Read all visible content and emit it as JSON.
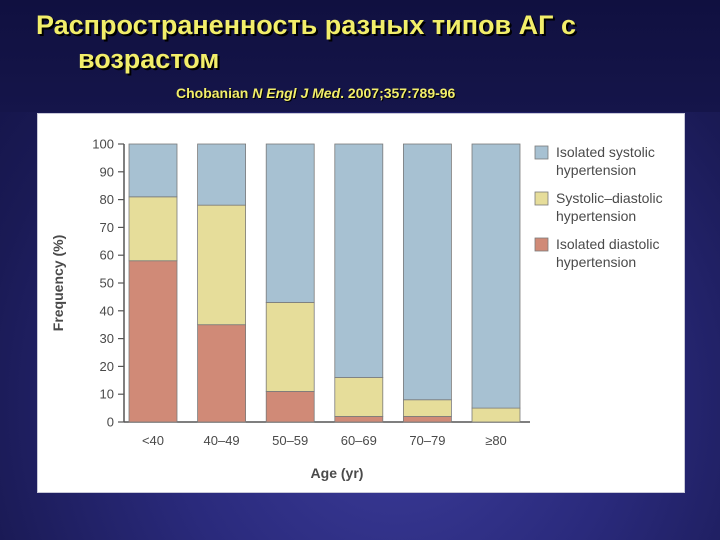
{
  "slide": {
    "title_line1": "Распространенность разных типов АГ с",
    "title_line2": "возрастом",
    "citation_author": "Chobanian",
    "citation_journal": "N Engl J Med",
    "citation_ref": ". 2007;357:789-96"
  },
  "chart_data": {
    "type": "bar",
    "stacked": true,
    "title": "",
    "xlabel": "Age (yr)",
    "ylabel": "Frequency (%)",
    "ylim": [
      0,
      100
    ],
    "yticks": [
      0,
      10,
      20,
      30,
      40,
      50,
      60,
      70,
      80,
      90,
      100
    ],
    "categories": [
      "<40",
      "40–49",
      "50–59",
      "60–69",
      "70–79",
      "≥80"
    ],
    "series": [
      {
        "name": "Isolated diastolic hypertension",
        "values": [
          58,
          35,
          11,
          2,
          2,
          0
        ],
        "color": "#d08a77"
      },
      {
        "name": "Systolic–diastolic hypertension",
        "values": [
          23,
          43,
          32,
          14,
          6,
          5
        ],
        "color": "#e6dd9a"
      },
      {
        "name": "Isolated systolic hypertension",
        "values": [
          19,
          22,
          57,
          84,
          92,
          95
        ],
        "color": "#a7c1d2"
      }
    ],
    "legend": {
      "placement": "right",
      "items": [
        {
          "line1": "Isolated systolic",
          "line2": "hypertension",
          "color": "#a7c1d2"
        },
        {
          "line1": "Systolic–diastolic",
          "line2": "hypertension",
          "color": "#e6dd9a"
        },
        {
          "line1": "Isolated diastolic",
          "line2": "hypertension",
          "color": "#d08a77"
        }
      ]
    },
    "grid": false
  }
}
